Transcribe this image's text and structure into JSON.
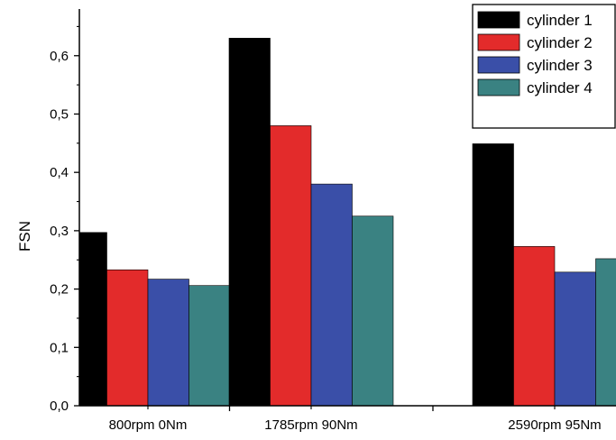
{
  "chart_data": {
    "type": "bar",
    "ylabel": "FSN",
    "xlabel": "",
    "title": "",
    "ylim": [
      0,
      0.68
    ],
    "yticks": [
      "0,0",
      "0,1",
      "0,2",
      "0,3",
      "0,4",
      "0,5",
      "0,6"
    ],
    "categories": [
      "800rpm 0Nm",
      "1785rpm 90Nm",
      "2590rpm 95Nm"
    ],
    "series": [
      {
        "name": "cylinder 1",
        "color": "#000000",
        "values": [
          0.297,
          0.63,
          0.449
        ]
      },
      {
        "name": "cylinder 2",
        "color": "#e32b2b",
        "values": [
          0.233,
          0.48,
          0.273
        ]
      },
      {
        "name": "cylinder 3",
        "color": "#3a4fa8",
        "values": [
          0.217,
          0.38,
          0.229
        ]
      },
      {
        "name": "cylinder 4",
        "color": "#3a8282",
        "values": [
          0.206,
          0.325,
          0.252
        ]
      }
    ],
    "legend_position": "top-right",
    "grid": false
  }
}
